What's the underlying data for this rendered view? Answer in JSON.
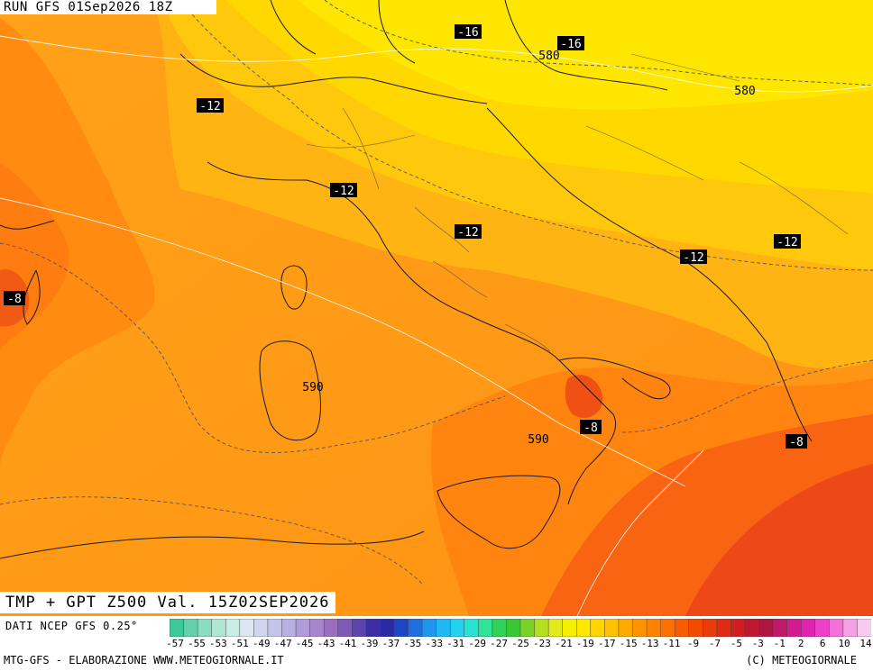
{
  "header": {
    "run_label": "RUN GFS 01Sep2026 18Z"
  },
  "map": {
    "title": "TMP + GPT Z500 Val. 15Z02SEP2026",
    "source": "DATI NCEP GFS 0.25°",
    "temperature_labels": [
      {
        "id": "t1",
        "text": "-16"
      },
      {
        "id": "t2",
        "text": "-16"
      },
      {
        "id": "t3",
        "text": "-12"
      },
      {
        "id": "t4",
        "text": "-12"
      },
      {
        "id": "t5",
        "text": "-12"
      },
      {
        "id": "t6",
        "text": "-12"
      },
      {
        "id": "t7",
        "text": "-12"
      },
      {
        "id": "t8",
        "text": "-8"
      },
      {
        "id": "t9",
        "text": "-8"
      },
      {
        "id": "t10",
        "text": "-8"
      }
    ],
    "height_labels": [
      {
        "id": "h1",
        "text": "580"
      },
      {
        "id": "h2",
        "text": "580"
      },
      {
        "id": "h3",
        "text": "590"
      },
      {
        "id": "h4",
        "text": "590"
      }
    ]
  },
  "legend": {
    "tick_labels": [
      "-57",
      "-55",
      "-53",
      "-51",
      "-49",
      "-47",
      "-45",
      "-43",
      "-41",
      "-39",
      "-37",
      "-35",
      "-33",
      "-31",
      "-29",
      "-27",
      "-25",
      "-23",
      "-21",
      "-19",
      "-17",
      "-15",
      "-13",
      "-11",
      "-9",
      "-7",
      "-5",
      "-3",
      "-1",
      "2",
      "6",
      "10",
      "14"
    ],
    "colors": [
      "#3dc89a",
      "#63d2aa",
      "#8cdcbe",
      "#b0e6d2",
      "#c9eee4",
      "#dbe6f0",
      "#cfd6ee",
      "#c2c4ea",
      "#b8b0e2",
      "#b09ad8",
      "#a886ce",
      "#9c6ec2",
      "#7f5ab8",
      "#5b44ae",
      "#3a2ea6",
      "#2a2aa8",
      "#1e46c4",
      "#1e6ee0",
      "#1e96f0",
      "#1eb8f4",
      "#22d2f0",
      "#28e2d2",
      "#2ee49a",
      "#30d25a",
      "#3ac832",
      "#7ad226",
      "#b4de20",
      "#e2ea1e",
      "#f6f000",
      "#ffe800",
      "#ffd400",
      "#ffc000",
      "#ffaa00",
      "#ff9400",
      "#ff8200",
      "#ff7000",
      "#fa5a00",
      "#f44a00",
      "#ec3a0a",
      "#e02a14",
      "#d01e20",
      "#c01830",
      "#b01440",
      "#c0186a",
      "#d41c90",
      "#e024b0",
      "#ec40c8",
      "#f270d8",
      "#f6a0e6",
      "#fac8f0"
    ]
  },
  "footer": {
    "left": "MTG-GFS - ELABORAZIONE WWW.METEOGIORNALE.IT",
    "right": "(C) METEOGIORNALE"
  }
}
